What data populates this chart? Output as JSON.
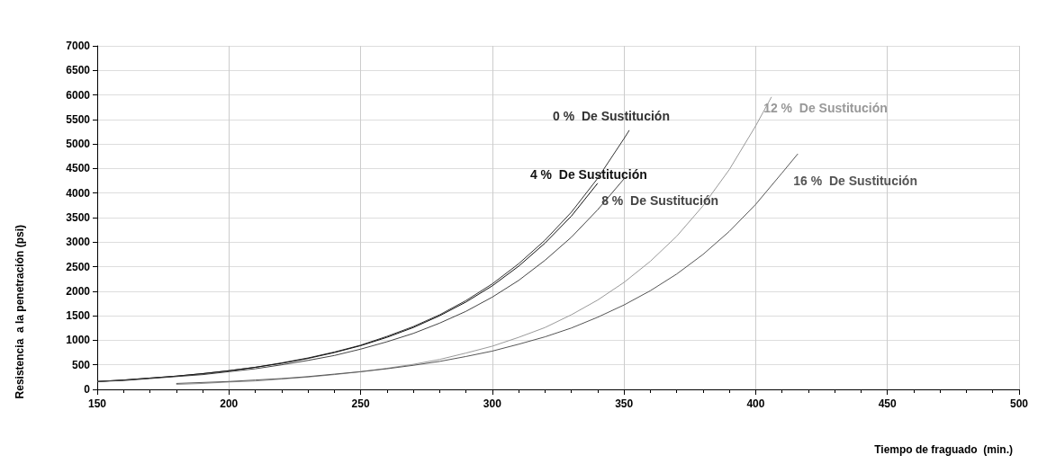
{
  "chart_data": {
    "type": "line",
    "xlabel": "Tiempo de fraguado  (min.)",
    "ylabel": "Resistencia  a la penetración (psi)",
    "xlim": [
      150,
      500
    ],
    "ylim": [
      0,
      7000
    ],
    "xticks": [
      150,
      {
        "value": 160,
        "label": null
      },
      {
        "value": 170,
        "label": null
      },
      {
        "value": 180,
        "label": null
      },
      {
        "value": 190,
        "label": null
      },
      200,
      250,
      300,
      350,
      400,
      450,
      500
    ],
    "yticks": [
      0,
      500,
      1000,
      1500,
      2000,
      2500,
      3000,
      3500,
      4000,
      4500,
      5000,
      5500,
      6000,
      6500,
      7000
    ],
    "grid": true,
    "legend": false,
    "marker": "none",
    "line_style": "solid",
    "series": [
      {
        "name": "0 %  De Sustitución",
        "color": "#333333",
        "x": [
          150,
          160,
          170,
          180,
          190,
          200,
          210,
          220,
          230,
          240,
          250,
          260,
          270,
          280,
          290,
          300,
          310,
          320,
          330,
          340,
          350,
          352
        ],
        "values": [
          160,
          190,
          230,
          270,
          320,
          380,
          450,
          540,
          640,
          760,
          900,
          1080,
          1280,
          1520,
          1810,
          2150,
          2560,
          3040,
          3610,
          4300,
          5110,
          5280
        ]
      },
      {
        "name": "4 %  De Sustitución",
        "color": "#111111",
        "x": [
          150,
          160,
          170,
          180,
          190,
          200,
          210,
          220,
          230,
          240,
          250,
          260,
          270,
          280,
          290,
          300,
          310,
          320,
          330,
          340
        ],
        "values": [
          160,
          190,
          230,
          270,
          320,
          380,
          450,
          530,
          630,
          750,
          890,
          1060,
          1260,
          1500,
          1780,
          2110,
          2510,
          2980,
          3530,
          4200
        ]
      },
      {
        "name": "8 %  De Sustitución",
        "color": "#444444",
        "x": [
          150,
          160,
          170,
          180,
          190,
          200,
          210,
          220,
          230,
          240,
          250,
          260,
          270,
          280,
          290,
          300,
          310,
          320,
          330,
          340,
          350
        ],
        "values": [
          160,
          180,
          220,
          260,
          300,
          360,
          420,
          500,
          590,
          690,
          820,
          970,
          1140,
          1350,
          1590,
          1880,
          2220,
          2630,
          3100,
          3660,
          4290
        ]
      },
      {
        "name": "12 %  De Sustitución",
        "color": "#999999",
        "x": [
          180,
          190,
          200,
          210,
          220,
          230,
          240,
          250,
          260,
          270,
          280,
          290,
          300,
          310,
          320,
          330,
          340,
          350,
          360,
          370,
          380,
          390,
          400,
          406
        ],
        "values": [
          100,
          120,
          150,
          170,
          210,
          250,
          300,
          360,
          430,
          510,
          610,
          740,
          880,
          1060,
          1260,
          1520,
          1820,
          2180,
          2610,
          3120,
          3740,
          4480,
          5370,
          5960
        ]
      },
      {
        "name": "16 %  De Sustitución",
        "color": "#555555",
        "x": [
          180,
          190,
          200,
          210,
          220,
          230,
          240,
          250,
          260,
          270,
          280,
          290,
          300,
          310,
          320,
          330,
          340,
          350,
          360,
          370,
          380,
          390,
          400,
          410,
          416
        ],
        "values": [
          120,
          140,
          160,
          190,
          220,
          260,
          310,
          360,
          420,
          490,
          570,
          670,
          780,
          920,
          1070,
          1250,
          1470,
          1720,
          2010,
          2350,
          2750,
          3220,
          3770,
          4410,
          4800
        ]
      }
    ]
  }
}
